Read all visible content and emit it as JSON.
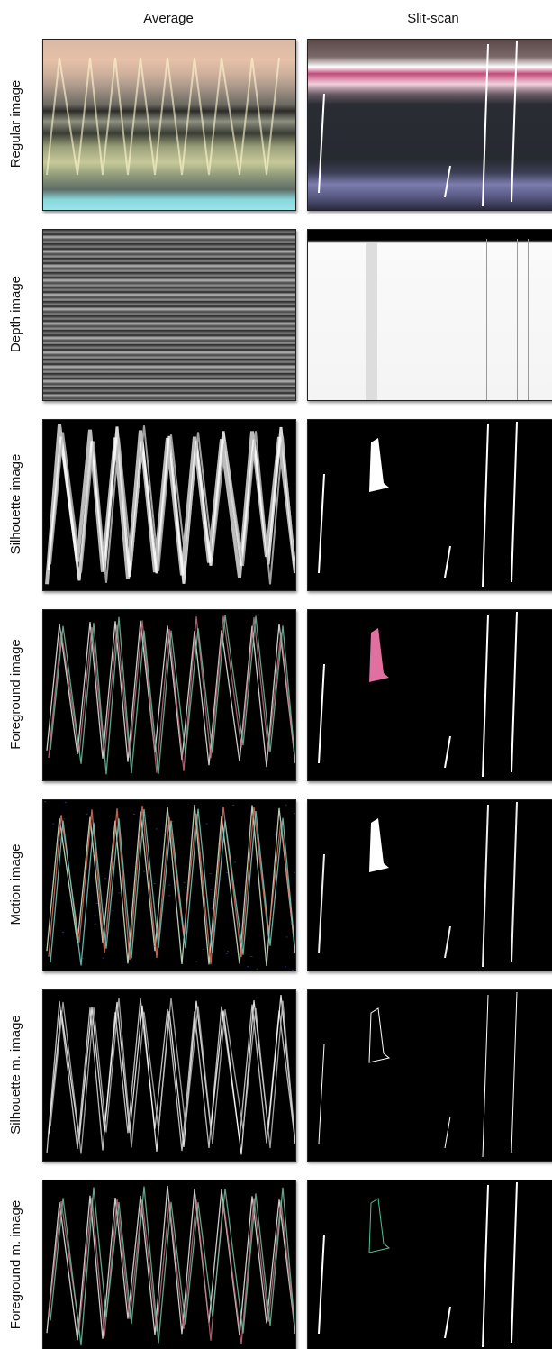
{
  "columns": [
    "Average",
    "Slit-scan"
  ],
  "rows": [
    "Regular image",
    "Depth image",
    "Silhouette image",
    "Foreground image",
    "Motion image",
    "Silhouette m. image",
    "Foreground m. image"
  ]
}
